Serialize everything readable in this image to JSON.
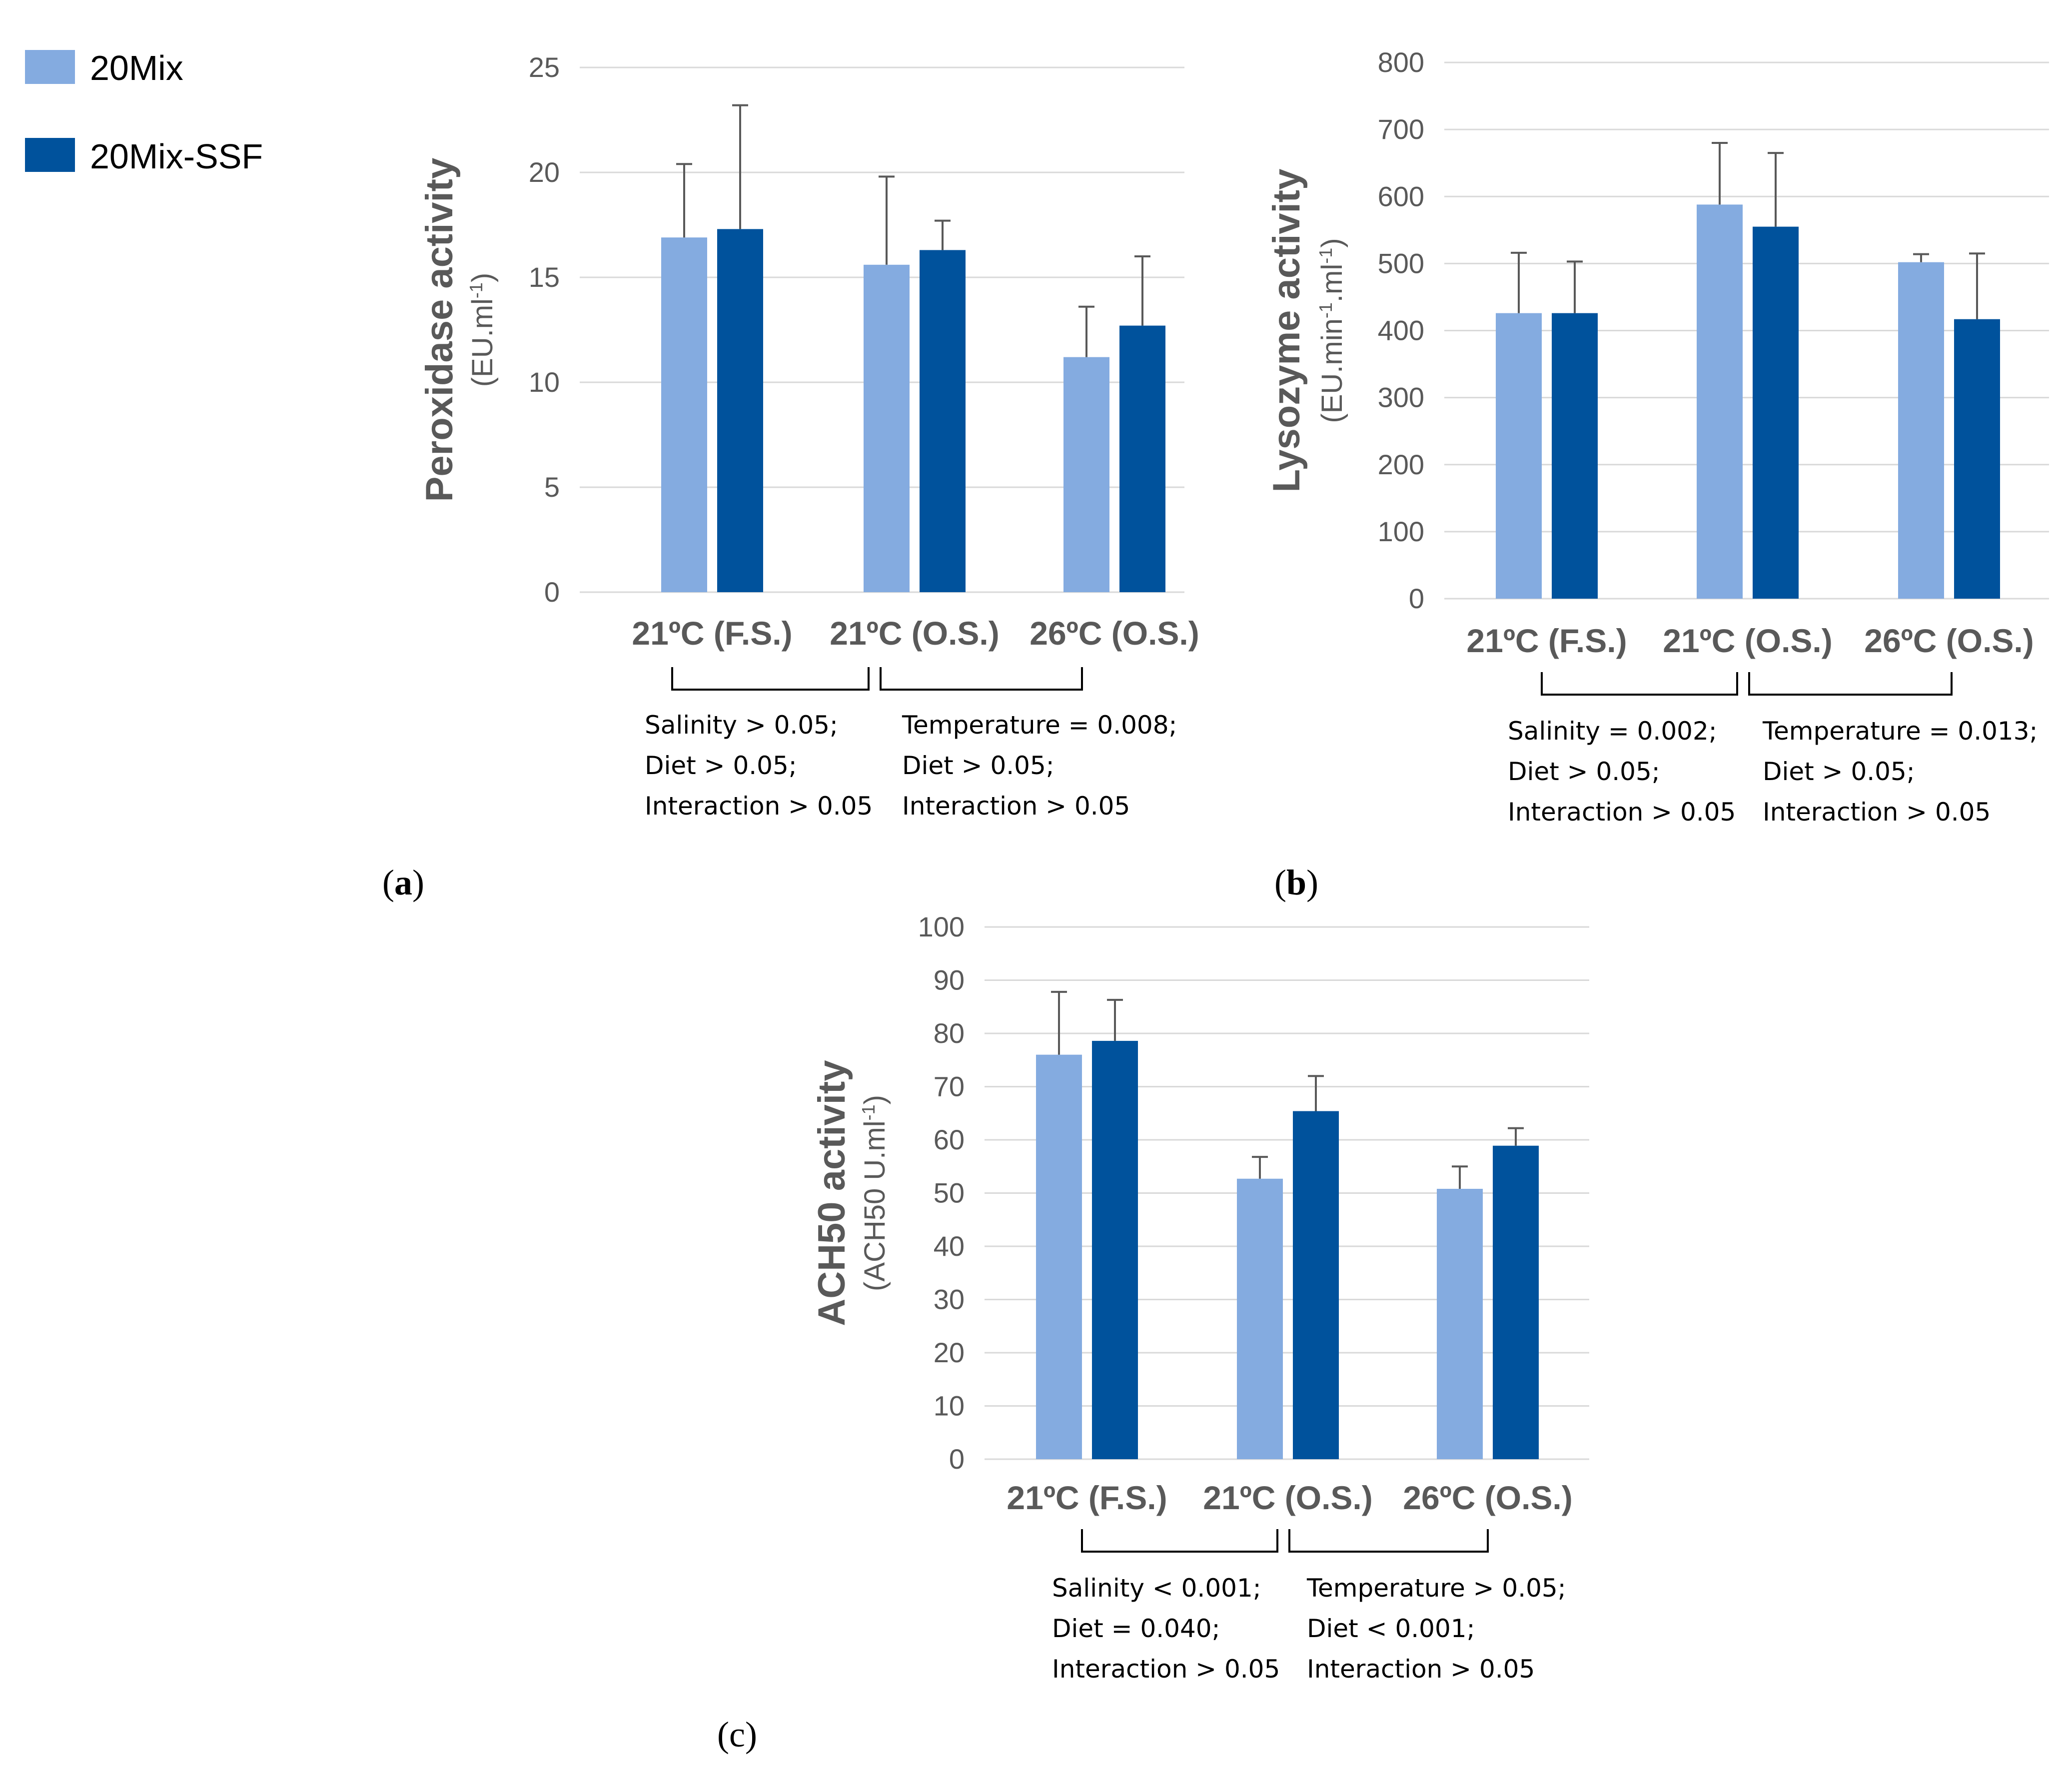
{
  "legend": {
    "items": [
      {
        "label": "20Mix",
        "color": "#84abe0"
      },
      {
        "label": "20Mix-SSF",
        "color": "#00529c"
      }
    ]
  },
  "chart_data": [
    {
      "id": "a",
      "type": "bar",
      "panel_label": "a",
      "ylabel": "Peroxidase activity",
      "yunit": "(EU.ml-1)",
      "ylim": [
        0,
        25
      ],
      "yticks": [
        0,
        5,
        10,
        15,
        20,
        25
      ],
      "categories": [
        "21ºC (F.S.)",
        "21ºC (O.S.)",
        "26ºC (O.S.)"
      ],
      "series": [
        {
          "name": "20Mix",
          "values": [
            16.9,
            15.6,
            11.2
          ],
          "errors": [
            3.5,
            4.2,
            2.4
          ]
        },
        {
          "name": "20Mix-SSF",
          "values": [
            17.3,
            16.3,
            12.7
          ],
          "errors": [
            5.9,
            1.4,
            3.3
          ]
        }
      ],
      "stats": [
        [
          "Salinity > 0.05;",
          "Diet > 0.05;",
          "Interaction > 0.05"
        ],
        [
          "Temperature = 0.008;",
          "Diet > 0.05;",
          "Interaction > 0.05"
        ]
      ]
    },
    {
      "id": "b",
      "type": "bar",
      "panel_label": "b",
      "ylabel": "Lysozyme activity",
      "yunit": "(EU.min-1.ml-1)",
      "ylim": [
        0,
        800
      ],
      "yticks": [
        0,
        100,
        200,
        300,
        400,
        500,
        600,
        700,
        800
      ],
      "categories": [
        "21ºC (F.S.)",
        "21ºC (O.S.)",
        "26ºC (O.S.)"
      ],
      "series": [
        {
          "name": "20Mix",
          "values": [
            426,
            588,
            502
          ],
          "errors": [
            90,
            92,
            12
          ]
        },
        {
          "name": "20Mix-SSF",
          "values": [
            426,
            555,
            417
          ],
          "errors": [
            77,
            110,
            98
          ]
        }
      ],
      "stats": [
        [
          "Salinity = 0.002;",
          "Diet > 0.05;",
          "Interaction > 0.05"
        ],
        [
          "Temperature = 0.013;",
          "Diet > 0.05;",
          "Interaction > 0.05"
        ]
      ]
    },
    {
      "id": "c",
      "type": "bar",
      "panel_label": "c",
      "ylabel": "ACH50 activity",
      "yunit": "(ACH50 U.ml-1)",
      "ylim": [
        0,
        100
      ],
      "yticks": [
        0,
        10,
        20,
        30,
        40,
        50,
        60,
        70,
        80,
        90,
        100
      ],
      "categories": [
        "21ºC (F.S.)",
        "21ºC (O.S.)",
        "26ºC (O.S.)"
      ],
      "series": [
        {
          "name": "20Mix",
          "values": [
            76,
            52.7,
            50.8
          ],
          "errors": [
            11.8,
            4.1,
            4.2
          ]
        },
        {
          "name": "20Mix-SSF",
          "values": [
            78.6,
            65.4,
            58.9
          ],
          "errors": [
            7.7,
            6.6,
            3.3
          ]
        }
      ],
      "stats": [
        [
          "Salinity < 0.001;",
          "Diet = 0.040;",
          "Interaction > 0.05"
        ],
        [
          "Temperature > 0.05;",
          "Diet < 0.001;",
          "Interaction > 0.05"
        ]
      ]
    }
  ]
}
